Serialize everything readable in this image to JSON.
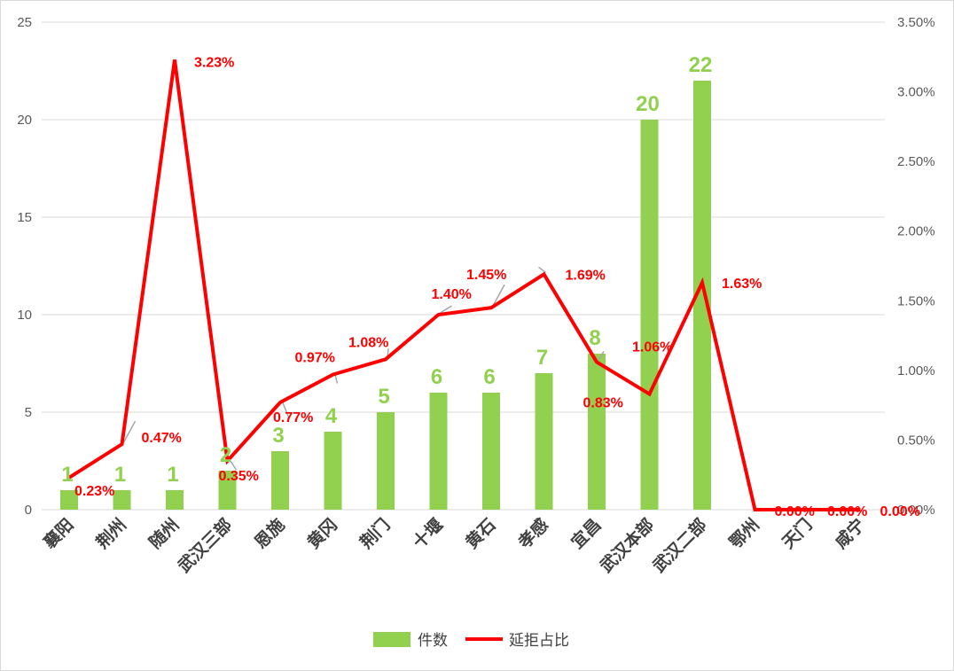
{
  "chart_data": {
    "type": "bar+line",
    "categories": [
      "襄阳",
      "荆州",
      "随州",
      "武汉三部",
      "恩施",
      "黄冈",
      "荆门",
      "十堰",
      "黄石",
      "孝感",
      "宜昌",
      "武汉本部",
      "武汉二部",
      "鄂州",
      "天门",
      "咸宁"
    ],
    "series": [
      {
        "name": "件数",
        "type": "bar",
        "axis": "left",
        "values": [
          1,
          1,
          1,
          2,
          3,
          4,
          5,
          6,
          6,
          7,
          8,
          20,
          22,
          null,
          null,
          null
        ],
        "labels": [
          "1",
          "1",
          "1",
          "2",
          "3",
          "4",
          "5",
          "6",
          "6",
          "7",
          "8",
          "20",
          "22",
          "",
          "",
          ""
        ]
      },
      {
        "name": "延拒占比",
        "type": "line",
        "axis": "right",
        "values": [
          0.23,
          0.47,
          3.23,
          0.35,
          0.77,
          0.97,
          1.08,
          1.4,
          1.45,
          1.69,
          1.06,
          0.83,
          1.63,
          0.0,
          0.0,
          0.0
        ],
        "labels": [
          "0.23%",
          "0.47%",
          "3.23%",
          "0.35%",
          "0.77%",
          "0.97%",
          "1.08%",
          "1.40%",
          "1.45%",
          "1.69%",
          "1.06%",
          "0.83%",
          "1.63%",
          "0.00%",
          "0.00%",
          "0.00%"
        ]
      }
    ],
    "y_left": {
      "min": 0,
      "max": 25,
      "ticks": [
        "0",
        "5",
        "10",
        "15",
        "20",
        "25"
      ]
    },
    "y_right": {
      "min": 0,
      "max": 3.5,
      "ticks": [
        "0.00%",
        "0.50%",
        "1.00%",
        "1.50%",
        "2.00%",
        "2.50%",
        "3.00%",
        "3.50%"
      ]
    },
    "grid": true,
    "legend_position": "bottom",
    "colors": {
      "bar": "#92d050",
      "line": "#ff0000",
      "grid": "#d9d9d9",
      "text": "#595959"
    }
  }
}
